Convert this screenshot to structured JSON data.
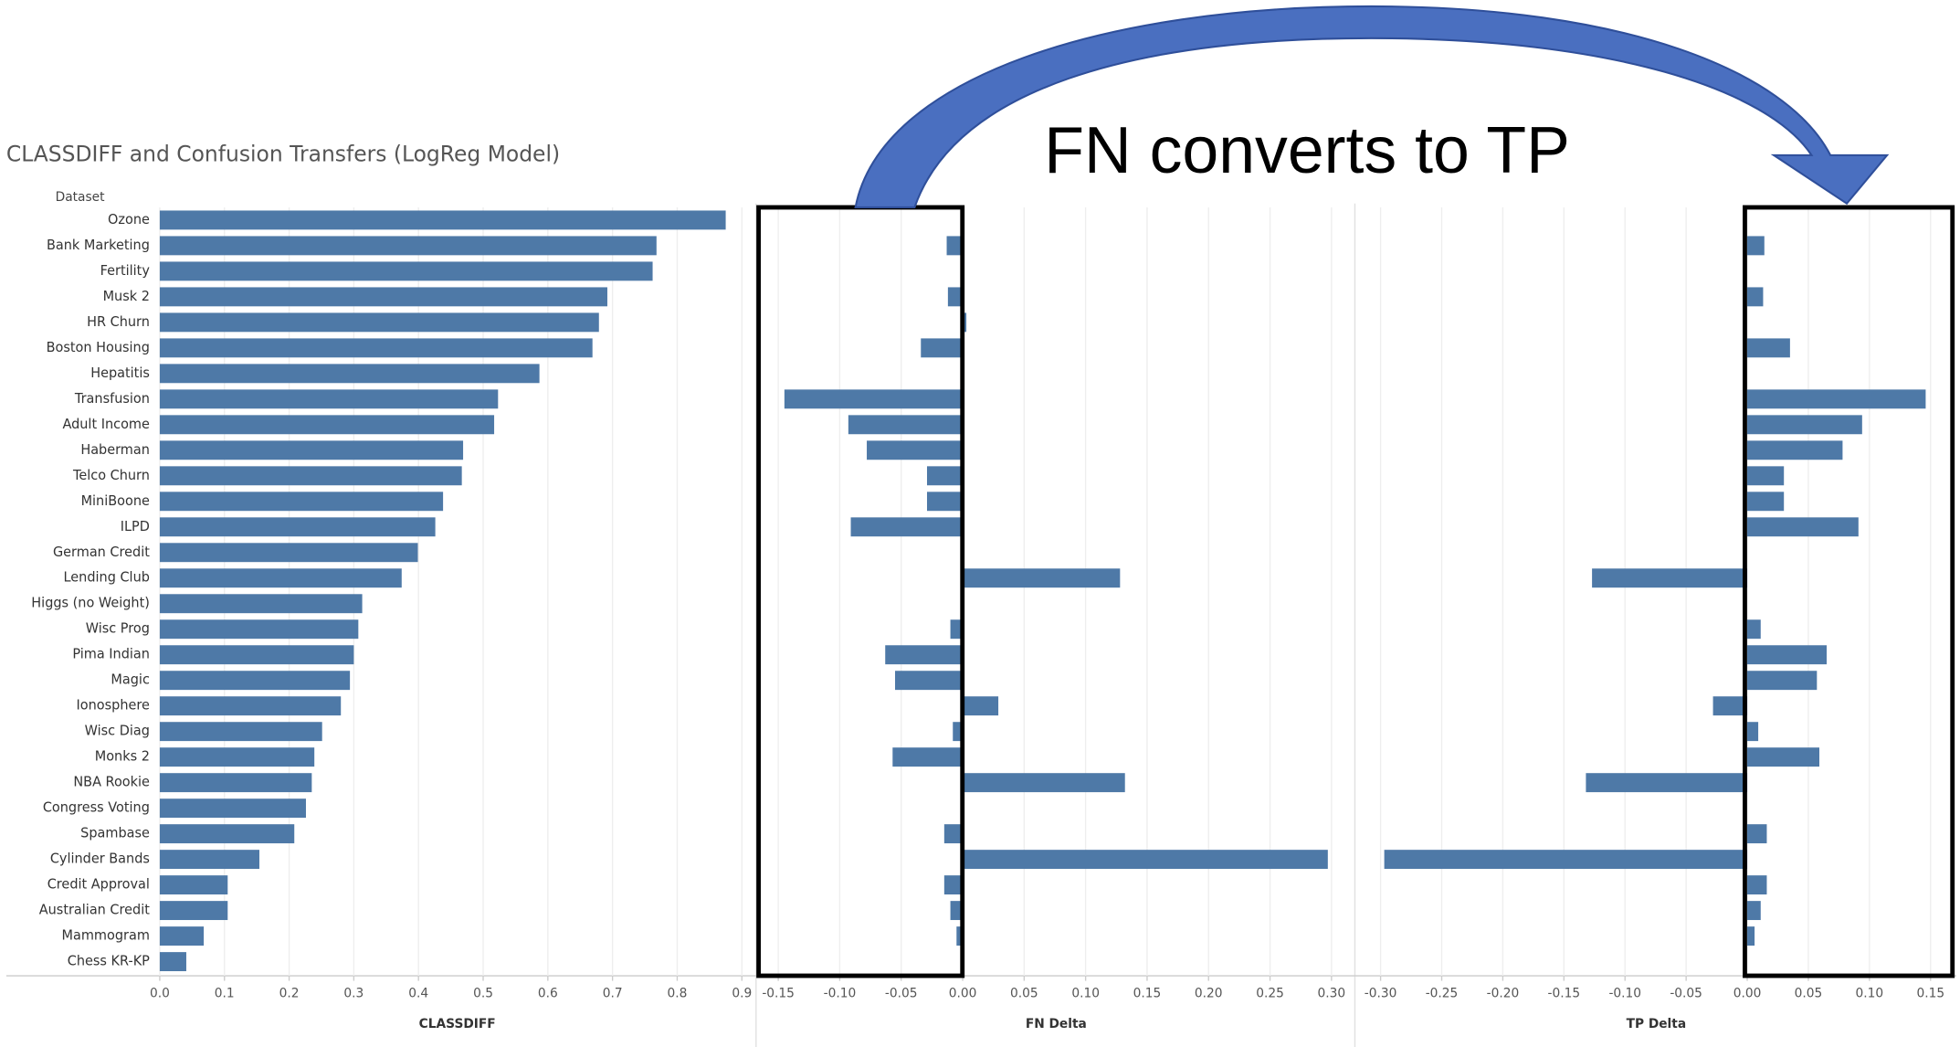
{
  "annotation": "FN converts to TP",
  "chart_data": [
    {
      "type": "hbar",
      "title": "CLASSDIFF and Confusion Transfers (LogReg Model)",
      "y_label": "Dataset",
      "x_label": "CLASSDIFF",
      "color": "#4e79a7",
      "categories": [
        "Ozone",
        "Bank Marketing",
        "Fertility",
        "Musk 2",
        "HR Churn",
        "Boston Housing",
        "Hepatitis",
        "Transfusion",
        "Adult Income",
        "Haberman",
        "Telco Churn",
        "MiniBoone",
        "ILPD",
        "German Credit",
        "Lending Club",
        "Higgs (no Weight)",
        "Wisc Prog",
        "Pima Indian",
        "Magic",
        "Ionosphere",
        "Wisc Diag",
        "Monks 2",
        "NBA Rookie",
        "Congress Voting",
        "Spambase",
        "Cylinder Bands",
        "Credit Approval",
        "Australian Credit",
        "Mammogram",
        "Chess KR-KP"
      ],
      "values": [
        0.875,
        0.768,
        0.762,
        0.692,
        0.679,
        0.669,
        0.587,
        0.523,
        0.517,
        0.469,
        0.467,
        0.438,
        0.426,
        0.399,
        0.374,
        0.313,
        0.307,
        0.3,
        0.294,
        0.28,
        0.251,
        0.239,
        0.235,
        0.226,
        0.208,
        0.154,
        0.105,
        0.105,
        0.068,
        0.041
      ],
      "xlim": [
        0,
        0.92
      ],
      "xticks": [
        {
          "value": 0,
          "label": "0.0"
        },
        0.1,
        0.2,
        0.3,
        0.4,
        0.5,
        0.6,
        0.7,
        0.8,
        0.9
      ],
      "grid": true
    },
    {
      "type": "hbar",
      "x_label": "FN Delta",
      "color": "#4e79a7",
      "values": [
        0,
        -0.013,
        0,
        -0.012,
        0.003,
        -0.034,
        0,
        -0.145,
        -0.093,
        -0.078,
        -0.029,
        -0.029,
        -0.091,
        0,
        0.128,
        0,
        -0.01,
        -0.063,
        -0.055,
        0.029,
        -0.008,
        -0.057,
        0.132,
        0,
        -0.015,
        0.297,
        -0.015,
        -0.01,
        -0.005,
        0
      ],
      "xlim": [
        -0.166,
        0.318
      ],
      "xticks": [
        -0.15,
        {
          "value": -0.1,
          "label": "-0.10"
        },
        -0.05,
        {
          "value": 0,
          "label": "0.00"
        },
        0.05,
        {
          "value": 0.1,
          "label": "0.10"
        },
        0.15,
        {
          "value": 0.2,
          "label": "0.20"
        },
        0.25,
        {
          "value": 0.3,
          "label": "0.30"
        }
      ],
      "grid": true
    },
    {
      "type": "hbar",
      "x_label": "TP Delta",
      "color": "#4e79a7",
      "values": [
        0,
        0.014,
        0,
        0.013,
        0,
        0.035,
        0,
        0.146,
        0.094,
        0.078,
        0.03,
        0.03,
        0.091,
        0,
        -0.127,
        0,
        0.011,
        0.065,
        0.057,
        -0.028,
        0.009,
        0.059,
        -0.132,
        0,
        0.016,
        -0.297,
        0.016,
        0.011,
        0.006,
        0
      ],
      "xlim": [
        -0.32,
        0.171
      ],
      "xticks": [
        {
          "value": -0.3,
          "label": "-0.30"
        },
        -0.25,
        {
          "value": -0.2,
          "label": "-0.20"
        },
        -0.15,
        {
          "value": -0.1,
          "label": "-0.10"
        },
        -0.05,
        {
          "value": 0,
          "label": "0.00"
        },
        0.05,
        {
          "value": 0.1,
          "label": "0.10"
        },
        0.15
      ],
      "grid": true
    }
  ]
}
